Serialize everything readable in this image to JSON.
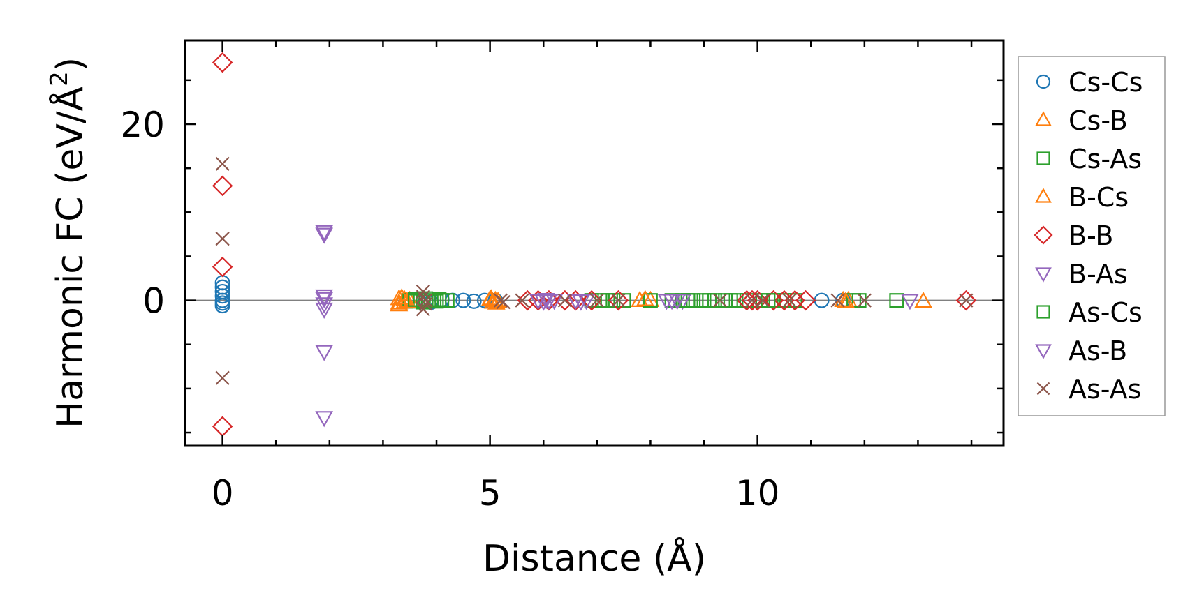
{
  "chart_data": {
    "type": "scatter",
    "title": "",
    "xlabel": "Distance (Å)",
    "ylabel_main": "Harmonic FC (eV/Å",
    "ylabel_sup": "2",
    "ylabel_close": ")",
    "xlim": [
      -0.7,
      14.6
    ],
    "ylim": [
      -16.5,
      29.5
    ],
    "xticks": [
      0,
      5,
      10
    ],
    "xtick_labels": [
      "0",
      "5",
      "10"
    ],
    "yticks": [
      0,
      20
    ],
    "ytick_labels": [
      "0",
      "20"
    ],
    "grid": false,
    "zero_line": true,
    "legend_position": "outside-right",
    "series": [
      {
        "name": "Cs-Cs",
        "marker": "circle",
        "color": "#1f77b4",
        "x": [
          0,
          0,
          0,
          0,
          0,
          0,
          0,
          3.8,
          3.9,
          4.1,
          4.3,
          4.5,
          4.7,
          4.9,
          5.1,
          11.2,
          11.6
        ],
        "y": [
          2.0,
          1.5,
          1.0,
          0.5,
          0.0,
          -0.3,
          -0.6,
          0.0,
          -0.2,
          0.1,
          0.0,
          0.0,
          -0.1,
          0.0,
          0.0,
          0.0,
          0.0
        ]
      },
      {
        "name": "Cs-B",
        "marker": "triangle-up",
        "color": "#ff7f0e",
        "x": [
          3.3,
          3.3,
          3.3,
          3.4,
          3.4,
          3.5,
          5.0,
          5.05,
          5.1,
          5.15,
          7.8,
          8.0,
          11.6,
          11.7,
          13.1
        ],
        "y": [
          0.2,
          -0.3,
          -0.5,
          0.1,
          -0.2,
          0.0,
          0.1,
          -0.2,
          0.0,
          -0.1,
          0.0,
          0.0,
          0.0,
          0.0,
          -0.1
        ]
      },
      {
        "name": "Cs-As",
        "marker": "square",
        "color": "#2ca02c",
        "x": [
          3.5,
          3.6,
          3.7,
          3.8,
          3.9,
          4.0,
          4.1,
          4.2,
          6.9,
          7.1,
          7.3,
          7.5,
          8.0,
          8.4,
          8.6,
          8.8,
          9.0,
          9.2,
          9.4,
          9.6,
          9.8,
          10.1,
          10.3,
          10.5,
          10.7,
          11.8,
          11.9,
          12.6
        ],
        "y": [
          0.0,
          -0.1,
          0.0,
          0.2,
          0.0,
          -0.1,
          0.0,
          0.0,
          0.0,
          0.0,
          0.0,
          0.0,
          0.0,
          0.0,
          0.0,
          0.0,
          0.0,
          0.0,
          0.0,
          0.0,
          0.0,
          0.0,
          0.0,
          0.0,
          0.0,
          0.0,
          0.0,
          0.0
        ]
      },
      {
        "name": "B-Cs",
        "marker": "triangle-up",
        "color": "#ff7f0e",
        "x": [
          3.35,
          3.45,
          5.02,
          5.12,
          7.9,
          11.65
        ],
        "y": [
          0.3,
          -0.1,
          0.2,
          -0.3,
          0.1,
          -0.1
        ]
      },
      {
        "name": "B-B",
        "marker": "diamond",
        "color": "#d62728",
        "x": [
          0,
          0,
          0,
          0,
          5.7,
          5.9,
          6.1,
          6.4,
          6.6,
          6.9,
          7.4,
          9.8,
          9.9,
          10.0,
          10.3,
          10.5,
          10.7,
          10.9,
          13.9
        ],
        "y": [
          27.0,
          13.0,
          3.8,
          -14.3,
          0.0,
          0.0,
          0.0,
          0.0,
          0.0,
          0.0,
          0.0,
          0.0,
          0.0,
          0.0,
          0.0,
          0.0,
          0.0,
          0.0,
          0.0
        ]
      },
      {
        "name": "B-As",
        "marker": "triangle-down",
        "color": "#9467bd",
        "x": [
          1.9,
          1.9,
          1.9,
          1.9,
          1.9,
          1.9,
          5.9,
          6.0,
          6.1,
          6.2,
          6.6,
          6.8,
          8.3,
          8.4,
          8.6,
          12.85
        ],
        "y": [
          7.8,
          7.5,
          0.2,
          -1.0,
          -5.8,
          -13.3,
          0.0,
          -0.1,
          0.0,
          0.0,
          0.0,
          0.0,
          0.0,
          0.0,
          0.0,
          0.0
        ]
      },
      {
        "name": "As-Cs",
        "marker": "square",
        "color": "#2ca02c",
        "x": [
          3.6,
          3.75,
          4.05,
          7.2,
          8.7,
          9.1,
          9.5,
          10.2
        ],
        "y": [
          0.1,
          -0.2,
          0.1,
          0.0,
          0.0,
          0.0,
          0.0,
          0.0
        ]
      },
      {
        "name": "As-B",
        "marker": "triangle-down",
        "color": "#9467bd",
        "x": [
          1.9,
          1.9,
          6.05,
          6.7,
          8.5
        ],
        "y": [
          0.5,
          -0.4,
          0.1,
          -0.1,
          0.0
        ]
      },
      {
        "name": "As-As",
        "marker": "x",
        "color": "#8c564b",
        "x": [
          0,
          0,
          0,
          3.75,
          3.75,
          3.75,
          3.8,
          3.8,
          5.2,
          5.25,
          5.6,
          6.4,
          7.0,
          7.4,
          9.3,
          9.9,
          10.1,
          10.6,
          11.5,
          12.0,
          13.9
        ],
        "y": [
          15.5,
          7.0,
          -8.8,
          1.0,
          0.4,
          -1.0,
          0.0,
          -0.4,
          0.0,
          -0.2,
          0.0,
          0.0,
          0.0,
          0.0,
          0.0,
          0.0,
          0.0,
          0.0,
          0.0,
          0.0,
          0.0
        ]
      }
    ]
  }
}
